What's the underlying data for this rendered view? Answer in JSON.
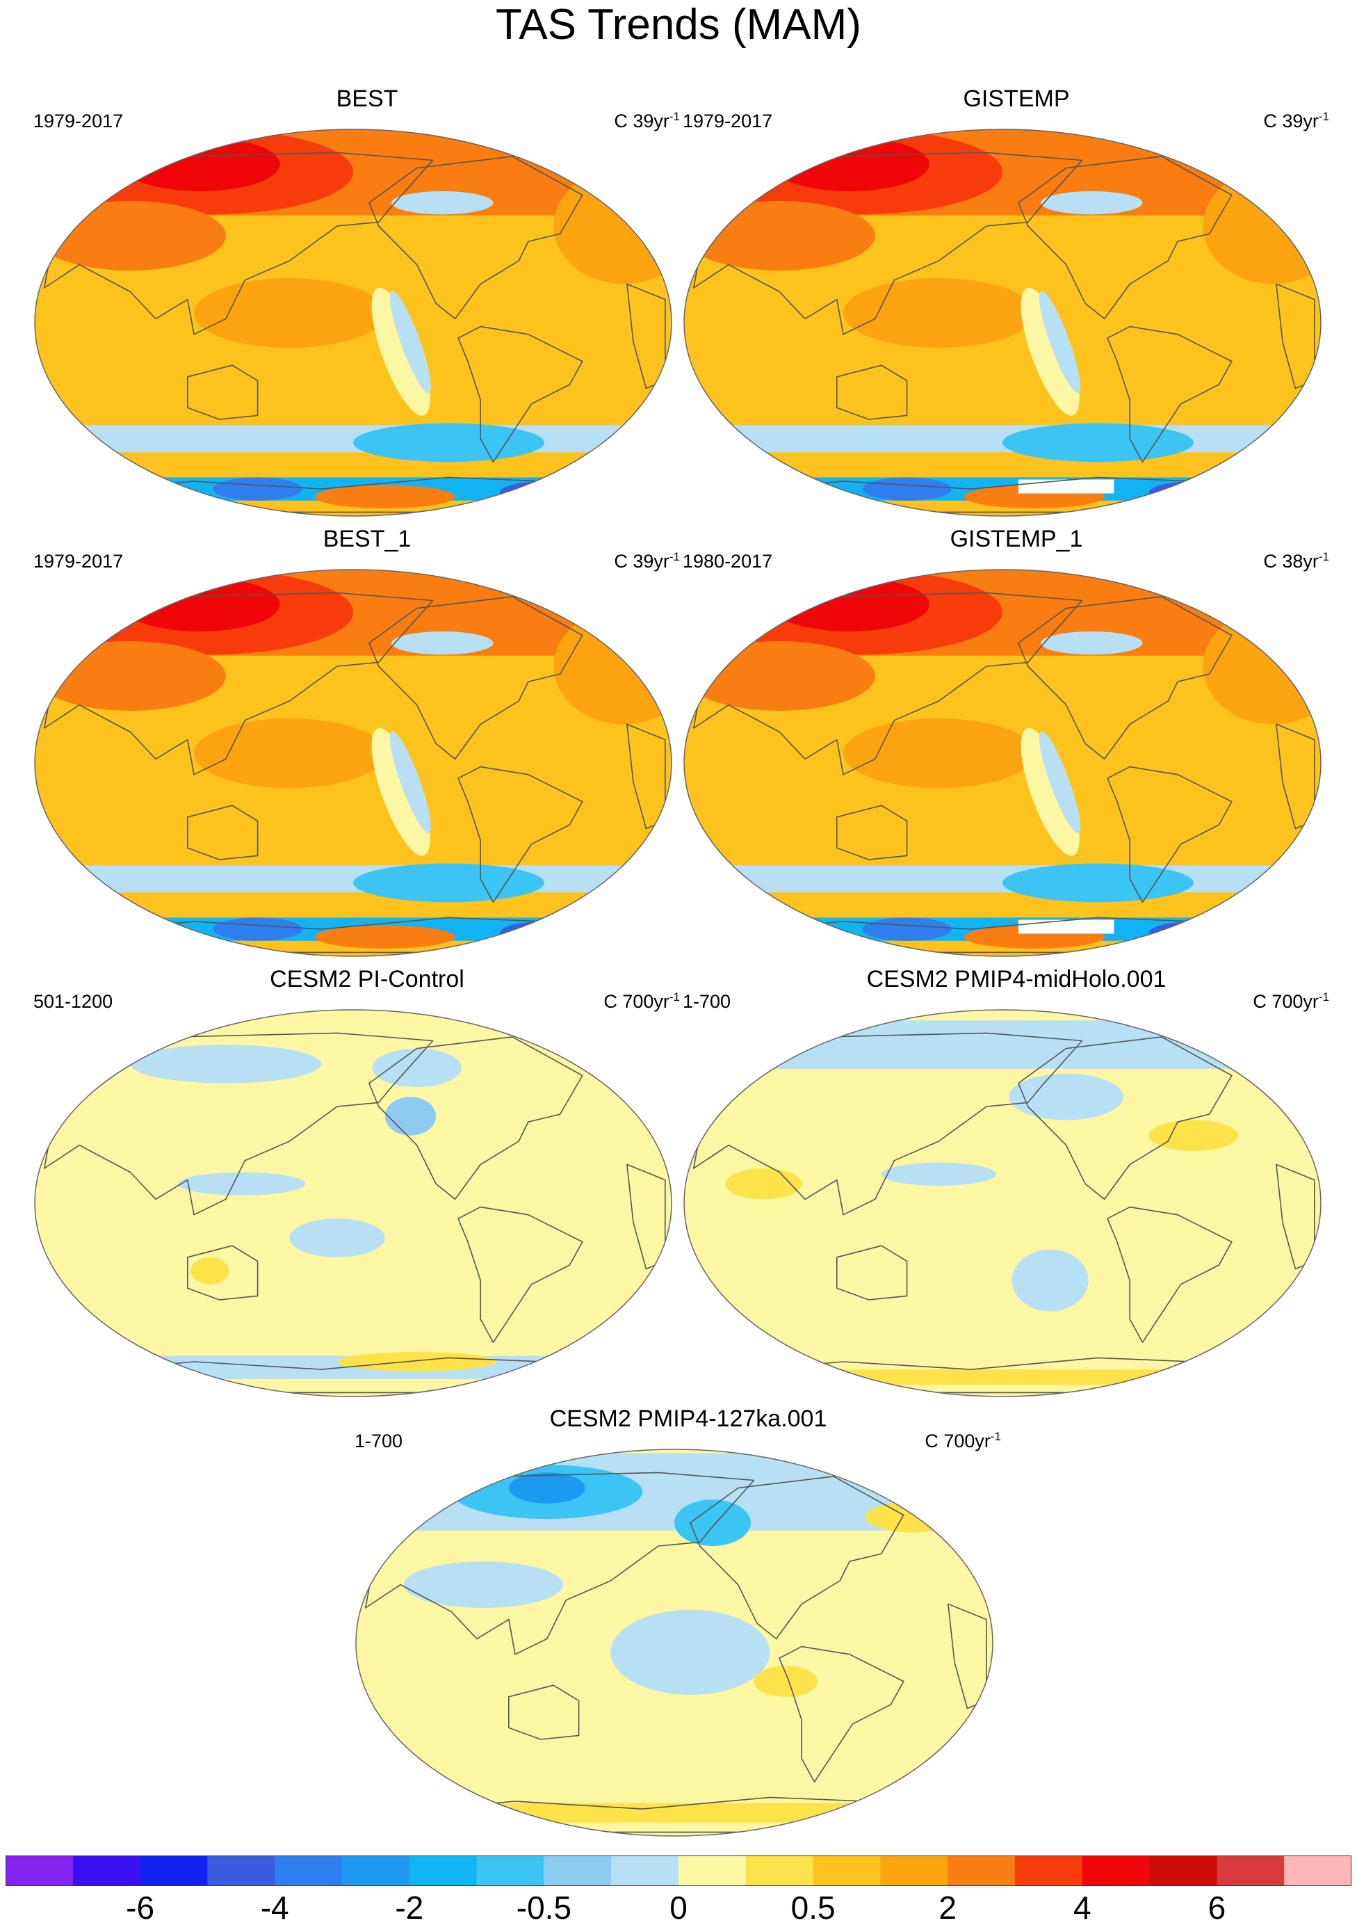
{
  "title": "TAS Trends (MAM)",
  "panels": [
    {
      "name": "BEST",
      "period": "1979-2017",
      "units_prefix": "C 39yr",
      "units_exp": "-1",
      "pattern": "obs"
    },
    {
      "name": "GISTEMP",
      "period": "1979-2017",
      "units_prefix": "C 39yr",
      "units_exp": "-1",
      "pattern": "obs_gaps"
    },
    {
      "name": "BEST_1",
      "period": "1979-2017",
      "units_prefix": "C 39yr",
      "units_exp": "-1",
      "pattern": "obs"
    },
    {
      "name": "GISTEMP_1",
      "period": "1980-2017",
      "units_prefix": "C 38yr",
      "units_exp": "-1",
      "pattern": "obs_gaps"
    },
    {
      "name": "CESM2 PI-Control",
      "period": "501-1200",
      "units_prefix": "C 700yr",
      "units_exp": "-1",
      "pattern": "model_weak"
    },
    {
      "name": "CESM2 PMIP4-midHolo.001",
      "period": "1-700",
      "units_prefix": "C 700yr",
      "units_exp": "-1",
      "pattern": "model_mid"
    },
    {
      "name": "CESM2 PMIP4-127ka.001",
      "period": "1-700",
      "units_prefix": "C 700yr",
      "units_exp": "-1",
      "pattern": "model_127"
    }
  ],
  "chart_data": {
    "type": "heatmap",
    "title": "TAS Trends (MAM)",
    "projection": "Robinson",
    "variable": "TAS",
    "season": "MAM",
    "colorbar": {
      "colors": [
        "#8424f0",
        "#3a10f2",
        "#1220f0",
        "#3a5ce0",
        "#2e7ef0",
        "#1e99f2",
        "#10b4f5",
        "#3cc4f5",
        "#8ecbf0",
        "#b8e0f5",
        "#fdf7a4",
        "#fde24a",
        "#fdc21c",
        "#fba410",
        "#f97d10",
        "#f83b0a",
        "#f00608",
        "#d00808",
        "#d93a3c",
        "#ffb6b6"
      ],
      "tick_labels": [
        "-6",
        "-4",
        "-2",
        "-0.5",
        "0",
        "0.5",
        "2",
        "4",
        "6"
      ],
      "tick_boundaries": [
        2,
        4,
        6,
        8,
        10,
        12,
        14,
        16,
        18
      ]
    }
  }
}
